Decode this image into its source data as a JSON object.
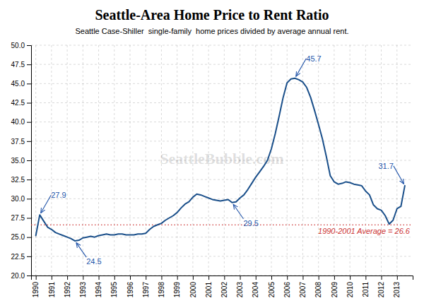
{
  "chart_data": {
    "type": "line",
    "title": "Seattle-Area Home Price to Rent Ratio",
    "subtitle": "Seattle Case-Shiller  single-family  home prices divided by average annual rent.",
    "watermark": "SeattleBubble.com",
    "color": "#1a4f8a",
    "x": [
      1990,
      1990.25,
      1990.5,
      1990.75,
      1991,
      1991.25,
      1991.5,
      1991.75,
      1992,
      1992.25,
      1992.5,
      1992.75,
      1993,
      1993.25,
      1993.5,
      1993.75,
      1994,
      1994.25,
      1994.5,
      1994.75,
      1995,
      1995.25,
      1995.5,
      1995.75,
      1996,
      1996.25,
      1996.5,
      1996.75,
      1997,
      1997.25,
      1997.5,
      1997.75,
      1998,
      1998.25,
      1998.5,
      1998.75,
      1999,
      1999.25,
      1999.5,
      1999.75,
      2000,
      2000.25,
      2000.5,
      2000.75,
      2001,
      2001.25,
      2001.5,
      2001.75,
      2002,
      2002.25,
      2002.5,
      2002.75,
      2003,
      2003.25,
      2003.5,
      2003.75,
      2004,
      2004.25,
      2004.5,
      2004.75,
      2005,
      2005.25,
      2005.5,
      2005.75,
      2006,
      2006.25,
      2006.5,
      2006.75,
      2007,
      2007.25,
      2007.5,
      2007.75,
      2008,
      2008.25,
      2008.5,
      2008.75,
      2009,
      2009.25,
      2009.5,
      2009.75,
      2010,
      2010.25,
      2010.5,
      2010.75,
      2011,
      2011.25,
      2011.5,
      2011.75,
      2012,
      2012.25,
      2012.5,
      2012.75,
      2013,
      2013.25,
      2013.5
    ],
    "values": [
      25.2,
      27.9,
      27.1,
      26.3,
      26.0,
      25.6,
      25.4,
      25.2,
      25.0,
      24.8,
      24.5,
      24.6,
      24.9,
      25.0,
      25.1,
      25.0,
      25.2,
      25.3,
      25.4,
      25.3,
      25.3,
      25.4,
      25.4,
      25.3,
      25.3,
      25.3,
      25.4,
      25.4,
      25.5,
      26.0,
      26.4,
      26.6,
      26.8,
      27.2,
      27.5,
      27.8,
      28.2,
      28.8,
      29.3,
      29.6,
      30.2,
      30.6,
      30.5,
      30.3,
      30.1,
      29.9,
      29.8,
      29.7,
      29.8,
      29.9,
      29.5,
      29.6,
      30.1,
      30.5,
      31.2,
      32.0,
      32.8,
      33.5,
      34.2,
      35.0,
      36.5,
      38.5,
      40.8,
      43.2,
      45.1,
      45.6,
      45.7,
      45.5,
      45.2,
      44.5,
      43.2,
      41.5,
      39.7,
      37.8,
      35.5,
      33.0,
      32.2,
      31.9,
      32.0,
      32.2,
      32.1,
      31.9,
      31.8,
      31.7,
      31.0,
      30.5,
      29.2,
      28.7,
      28.5,
      27.8,
      26.7,
      27.2,
      28.7,
      29.0,
      31.7
    ],
    "xlim": [
      1989.7,
      2014.0
    ],
    "xticks": [
      1990,
      1991,
      1992,
      1993,
      1994,
      1995,
      1996,
      1997,
      1998,
      1999,
      2000,
      2001,
      2002,
      2003,
      2004,
      2005,
      2006,
      2007,
      2008,
      2009,
      2010,
      2011,
      2012,
      2013
    ],
    "ylim": [
      20.0,
      50.0
    ],
    "yticks": [
      {
        "value": 20.0,
        "label": "20.0"
      },
      22.5,
      {
        "value": 25.0,
        "label": "25.0"
      },
      27.5,
      {
        "value": 30.0,
        "label": "30.0"
      },
      32.5,
      {
        "value": 35.0,
        "label": "35.0"
      },
      37.5,
      {
        "value": 40.0,
        "label": "40.0"
      },
      42.5,
      {
        "value": 45.0,
        "label": "45.0"
      },
      47.5,
      {
        "value": 50.0,
        "label": "50.0"
      }
    ],
    "grid": true,
    "reference_line": {
      "value": 26.6,
      "label": "1990-2001 Average = 26.6",
      "color": "#cc3333"
    },
    "annotation_color": "#2255aa",
    "annotations": [
      {
        "label": "27.9",
        "x": 1990.25,
        "y": 27.9
      },
      {
        "label": "24.5",
        "x": 1992.5,
        "y": 24.5
      },
      {
        "label": "45.7",
        "x": 2006.5,
        "y": 45.7
      },
      {
        "label": "29.5",
        "x": 2002.5,
        "y": 29.5
      },
      {
        "label": "31.7",
        "x": 2013.5,
        "y": 31.7
      }
    ]
  }
}
